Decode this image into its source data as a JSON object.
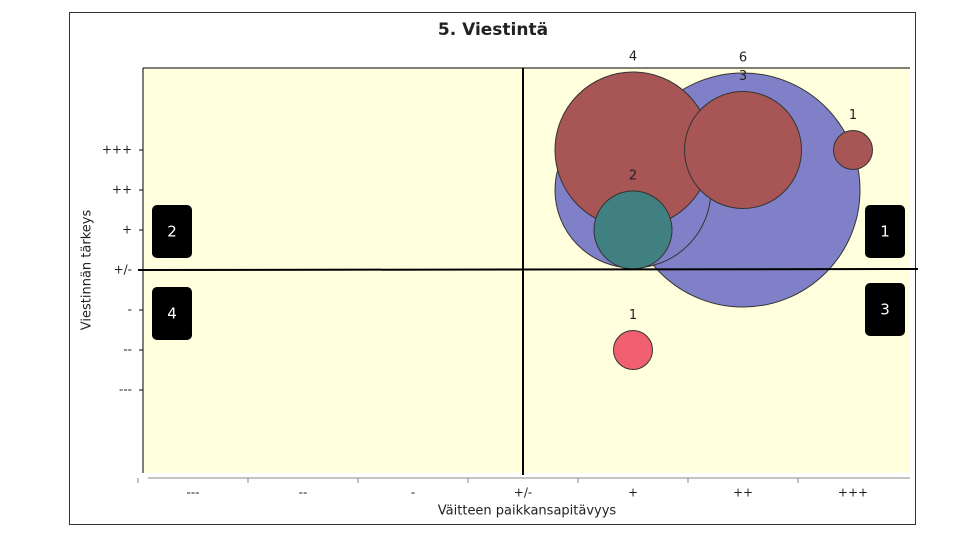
{
  "chart_data": {
    "type": "bubble",
    "title": "5. Viestintä",
    "x_label": "Väitteen paikkansapitävyys",
    "y_label": "Viestinnän tärkeys",
    "xlim": [
      -3.5,
      3.5
    ],
    "ylim": [
      -5,
      5
    ],
    "xticks": [
      {
        "value": -3,
        "label": "---"
      },
      {
        "value": -2,
        "label": "--"
      },
      {
        "value": -1,
        "label": "-"
      },
      {
        "value": 0,
        "label": "+/-"
      },
      {
        "value": 1,
        "label": "+"
      },
      {
        "value": 2,
        "label": "++"
      },
      {
        "value": 3,
        "label": "+++"
      }
    ],
    "yticks": [
      {
        "value": 3,
        "label": "+++"
      },
      {
        "value": 2,
        "label": "++"
      },
      {
        "value": 1,
        "label": "+"
      },
      {
        "value": 0,
        "label": "+/-"
      },
      {
        "value": -1,
        "label": "-"
      },
      {
        "value": -2,
        "label": "--"
      },
      {
        "value": -3,
        "label": "---"
      }
    ],
    "grid": false,
    "points": [
      {
        "x": 2,
        "y": 2,
        "size": 6,
        "color": "#8080c8"
      },
      {
        "x": 1,
        "y": 2,
        "size": 4,
        "color": "#8080c8"
      },
      {
        "x": 1,
        "y": 3,
        "size": 4,
        "color": "#a85555"
      },
      {
        "x": 2,
        "y": 3,
        "size": 3,
        "color": "#a85555"
      },
      {
        "x": 3,
        "y": 3,
        "size": 1,
        "color": "#a85555"
      },
      {
        "x": 1,
        "y": 1,
        "size": 2,
        "color": "#408080"
      },
      {
        "x": 1,
        "y": -2,
        "size": 1,
        "color": "#f06070"
      }
    ],
    "quadrant_labels": [
      "1",
      "2",
      "3",
      "4"
    ]
  }
}
